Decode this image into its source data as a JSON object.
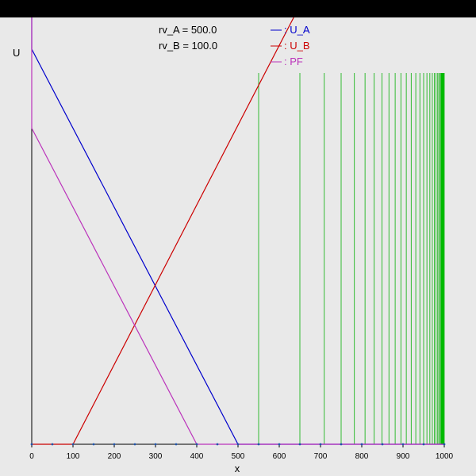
{
  "chart_data": {
    "type": "line",
    "xlabel": "x",
    "ylabel": "U",
    "xlim": [
      0,
      1000
    ],
    "ylim": [
      0,
      1000
    ],
    "xticks": [
      0,
      100,
      200,
      300,
      400,
      500,
      600,
      700,
      800,
      900,
      1000
    ],
    "params": [
      {
        "name": "rv_A",
        "value": "500.0",
        "label": "rv_A = 500.0"
      },
      {
        "name": "rv_B",
        "value": "100.0",
        "label": "rv_B = 100.0"
      }
    ],
    "series": [
      {
        "name": "U_A",
        "legend_label": ": U_A",
        "color": "#0000cc",
        "points": [
          [
            0,
            1100
          ],
          [
            0,
            1000
          ],
          [
            500,
            0
          ],
          [
            1000,
            0
          ]
        ]
      },
      {
        "name": "U_B",
        "legend_label": ": U_B",
        "color": "#cc0000",
        "points": [
          [
            0,
            0
          ],
          [
            100,
            0
          ],
          [
            635,
            1155
          ]
        ]
      },
      {
        "name": "PF",
        "legend_label": ": PF",
        "color": "#bb33bb",
        "points": [
          [
            0,
            1155
          ],
          [
            0,
            800
          ],
          [
            400,
            0
          ],
          [
            1000,
            0
          ]
        ]
      }
    ],
    "vertical_lines": {
      "color": "#33bb33",
      "x": [
        550,
        650,
        709,
        750,
        782,
        808,
        830,
        849,
        866,
        881,
        895,
        908,
        920,
        931,
        941,
        950,
        958,
        965,
        971,
        976,
        980,
        984,
        987,
        990,
        992,
        994,
        996,
        998,
        1000
      ],
      "y_top": 1000
    },
    "grid": false,
    "legend_position": "top"
  }
}
